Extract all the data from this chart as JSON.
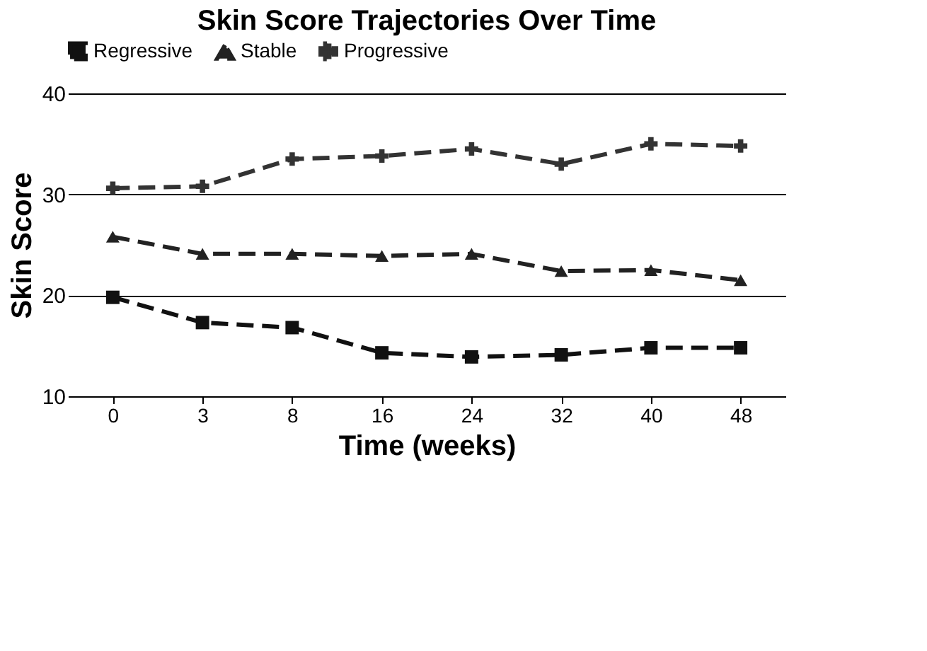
{
  "chart_data": {
    "type": "line",
    "title": "Skin Score Trajectories Over Time",
    "xlabel": "Time (weeks)",
    "ylabel": "Skin Score",
    "categories": [
      "0",
      "3",
      "8",
      "16",
      "24",
      "32",
      "40",
      "48"
    ],
    "series": [
      {
        "name": "Regressive",
        "color": "#111111",
        "marker": "square",
        "line_style": "dashed",
        "values": [
          19.8,
          17.3,
          16.8,
          14.3,
          13.9,
          14.1,
          14.8,
          14.8
        ]
      },
      {
        "name": "Stable",
        "color": "#222222",
        "marker": "triangle",
        "line_style": "dashed",
        "values": [
          25.8,
          24.1,
          24.1,
          23.9,
          24.1,
          22.4,
          22.5,
          21.5
        ]
      },
      {
        "name": "Progressive",
        "color": "#333333",
        "marker": "cross",
        "line_style": "dashed",
        "values": [
          30.6,
          30.8,
          33.5,
          33.8,
          34.5,
          33.0,
          35.0,
          34.8
        ]
      }
    ],
    "ylim": [
      10,
      40
    ],
    "yticks": [
      10,
      20,
      30,
      40
    ],
    "grid": "y",
    "legend": "top"
  }
}
